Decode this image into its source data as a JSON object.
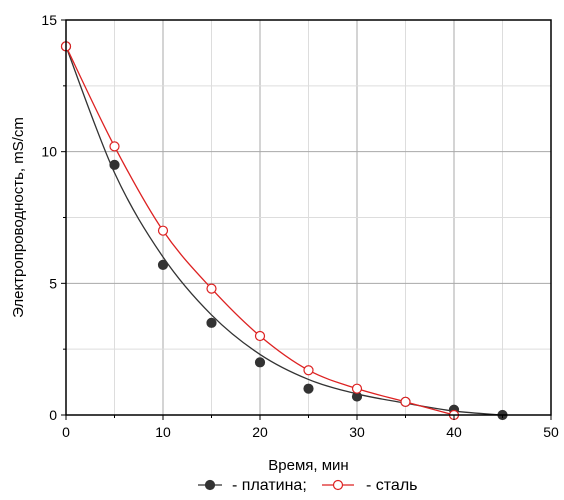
{
  "chart_data": {
    "type": "line",
    "xlabel": "Время, мин",
    "ylabel": "Электропроводность, mS/cm",
    "xlim": [
      0,
      50
    ],
    "ylim": [
      0,
      15
    ],
    "xticks": [
      0,
      10,
      20,
      30,
      40,
      50
    ],
    "yticks": [
      0,
      5,
      10,
      15
    ],
    "grid": true,
    "legend_position": "bottom",
    "series": [
      {
        "name": "- платина;",
        "marker": "filled-circle",
        "color": "#333333",
        "x": [
          0,
          5,
          10,
          15,
          20,
          25,
          30,
          35,
          40,
          45
        ],
        "y": [
          14.0,
          9.5,
          5.7,
          3.5,
          2.0,
          1.0,
          0.7,
          0.5,
          0.2,
          0.0
        ],
        "curve_y": [
          14.0,
          9.2,
          6.0,
          3.8,
          2.3,
          1.35,
          0.8,
          0.45,
          0.15,
          0.0
        ]
      },
      {
        "name": "- сталь",
        "marker": "open-circle",
        "color": "#dd2222",
        "x": [
          0,
          5,
          10,
          15,
          20,
          25,
          30,
          35,
          40
        ],
        "y": [
          14.0,
          10.2,
          7.0,
          4.8,
          3.0,
          1.7,
          1.0,
          0.5,
          0.0
        ],
        "curve_y": [
          14.0,
          10.2,
          7.0,
          4.8,
          3.0,
          1.7,
          1.0,
          0.5,
          0.0
        ]
      }
    ]
  }
}
